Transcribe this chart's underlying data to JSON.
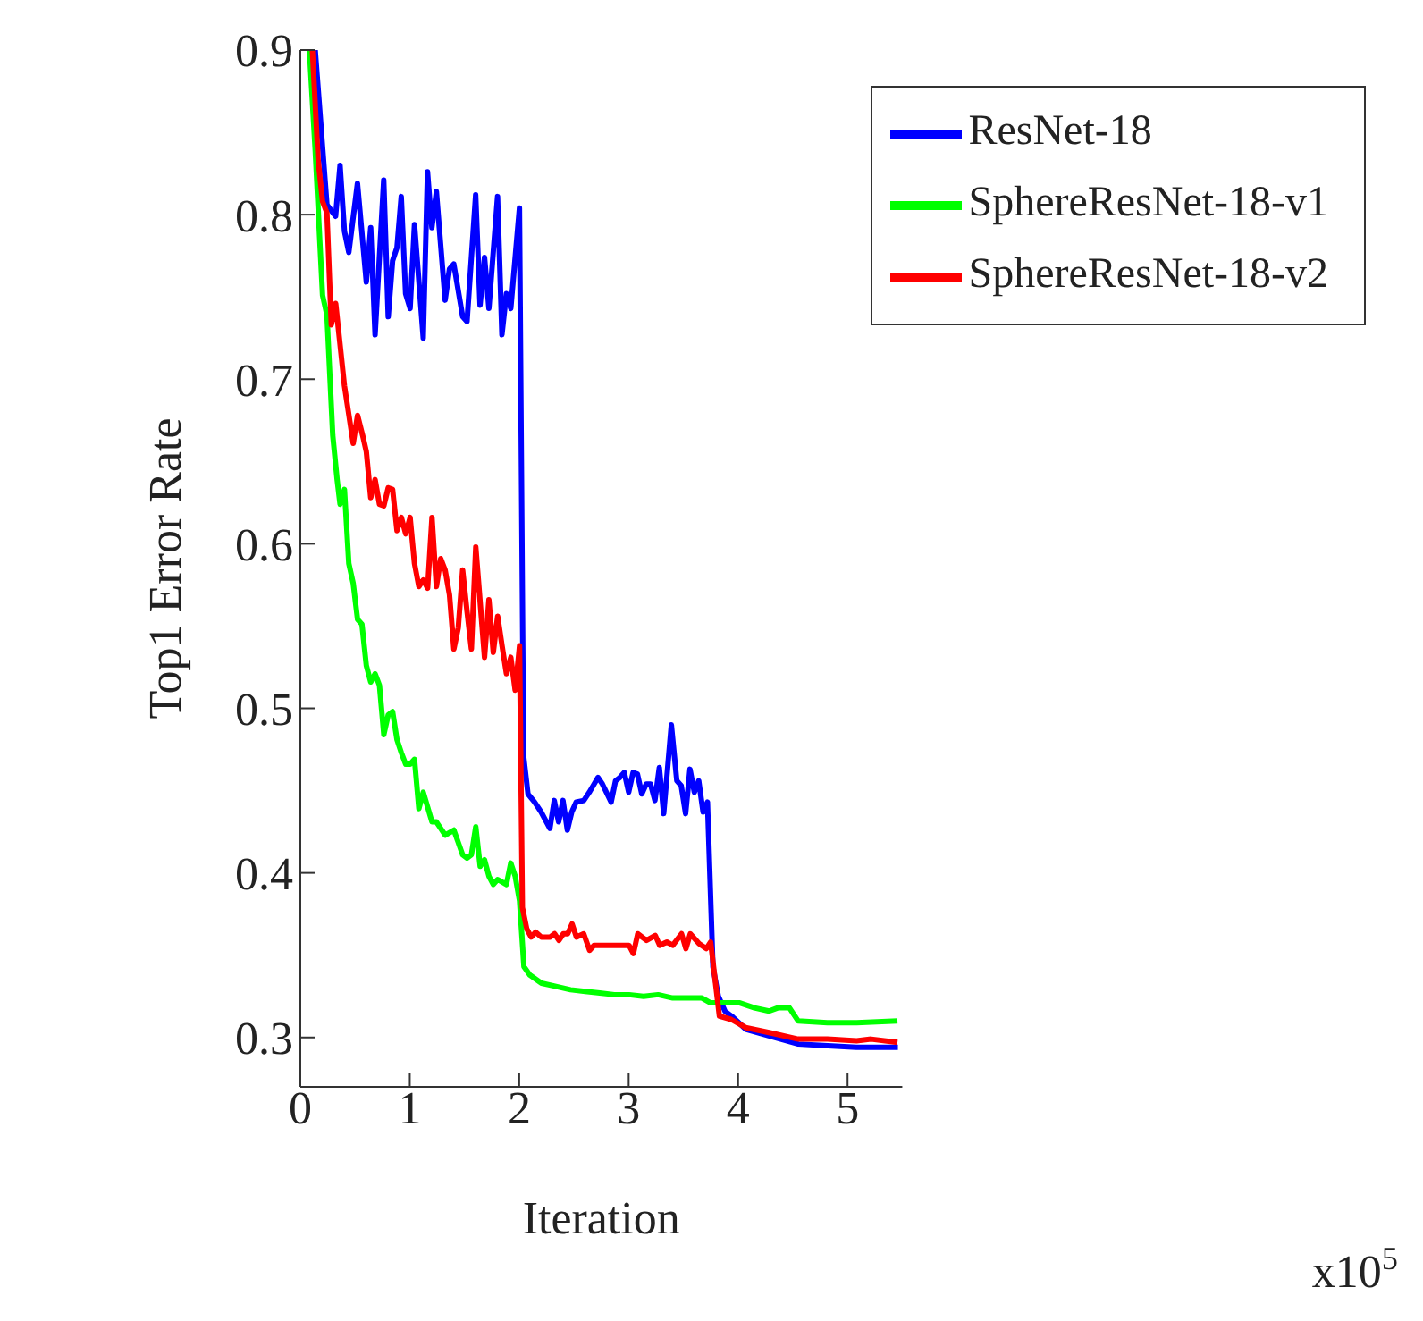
{
  "chart_data": {
    "type": "line",
    "xlabel": "Iteration",
    "ylabel": "Top1 Error Rate",
    "annotations": [
      "x10$^{5}$"
    ],
    "xlim": [
      0,
      5.5
    ],
    "xticks": [
      0,
      1,
      2,
      3,
      4,
      5
    ],
    "ylim": [
      0.27,
      0.9
    ],
    "yticks": [
      0.3,
      0.4,
      0.5,
      0.6,
      0.7,
      0.8,
      0.9
    ],
    "grid": false,
    "legend": "top right",
    "marker": "none",
    "line_style": "solid",
    "series": [
      {
        "name": "ResNet-18",
        "color": "#0000ff",
        "x": [
          0.136,
          0.243,
          0.322,
          0.363,
          0.403,
          0.443,
          0.522,
          0.603,
          0.643,
          0.683,
          0.762,
          0.803,
          0.843,
          0.883,
          0.922,
          0.962,
          1.003,
          1.043,
          1.123,
          1.162,
          1.202,
          1.243,
          1.323,
          1.363,
          1.402,
          1.483,
          1.523,
          1.602,
          1.642,
          1.683,
          1.723,
          1.802,
          1.842,
          1.883,
          1.923,
          2.002,
          2.04,
          2.08,
          2.14,
          2.2,
          2.28,
          2.32,
          2.36,
          2.4,
          2.44,
          2.48,
          2.52,
          2.59,
          2.64,
          2.72,
          2.76,
          2.84,
          2.88,
          2.92,
          2.96,
          3.0,
          3.04,
          3.08,
          3.12,
          3.16,
          3.2,
          3.24,
          3.28,
          3.32,
          3.39,
          3.44,
          3.48,
          3.52,
          3.56,
          3.6,
          3.64,
          3.68,
          3.72,
          3.77,
          3.82,
          3.88,
          3.94,
          4.07,
          4.28,
          4.55,
          4.82,
          5.08,
          5.46
        ],
        "values": [
          0.9,
          0.806,
          0.799,
          0.83,
          0.79,
          0.777,
          0.819,
          0.759,
          0.792,
          0.727,
          0.821,
          0.738,
          0.772,
          0.78,
          0.811,
          0.752,
          0.743,
          0.794,
          0.725,
          0.826,
          0.792,
          0.814,
          0.748,
          0.767,
          0.77,
          0.738,
          0.735,
          0.812,
          0.745,
          0.774,
          0.743,
          0.811,
          0.727,
          0.752,
          0.743,
          0.804,
          0.471,
          0.448,
          0.443,
          0.437,
          0.427,
          0.444,
          0.431,
          0.444,
          0.426,
          0.437,
          0.443,
          0.444,
          0.449,
          0.458,
          0.454,
          0.443,
          0.456,
          0.458,
          0.461,
          0.449,
          0.461,
          0.46,
          0.448,
          0.454,
          0.454,
          0.444,
          0.464,
          0.436,
          0.49,
          0.456,
          0.453,
          0.436,
          0.463,
          0.449,
          0.456,
          0.437,
          0.443,
          0.343,
          0.325,
          0.316,
          0.313,
          0.305,
          0.301,
          0.296,
          0.295,
          0.294,
          0.294
        ]
      },
      {
        "name": "SphereResNet-18-v1",
        "color": "#00ff00",
        "x": [
          0.083,
          0.136,
          0.203,
          0.243,
          0.296,
          0.336,
          0.363,
          0.403,
          0.443,
          0.483,
          0.523,
          0.563,
          0.603,
          0.643,
          0.683,
          0.723,
          0.763,
          0.803,
          0.843,
          0.883,
          0.923,
          0.963,
          1.003,
          1.043,
          1.083,
          1.123,
          1.203,
          1.243,
          1.323,
          1.403,
          1.483,
          1.523,
          1.563,
          1.603,
          1.643,
          1.683,
          1.723,
          1.763,
          1.803,
          1.883,
          1.923,
          1.963,
          2.003,
          2.043,
          2.096,
          2.203,
          2.336,
          2.469,
          2.603,
          2.736,
          2.869,
          3.003,
          3.136,
          3.269,
          3.403,
          3.536,
          3.669,
          3.749,
          4.016,
          4.149,
          4.283,
          4.363,
          4.469,
          4.549,
          4.816,
          5.083,
          5.456
        ],
        "values": [
          0.9,
          0.839,
          0.751,
          0.739,
          0.666,
          0.639,
          0.624,
          0.633,
          0.588,
          0.576,
          0.554,
          0.551,
          0.526,
          0.516,
          0.521,
          0.514,
          0.484,
          0.496,
          0.498,
          0.481,
          0.473,
          0.466,
          0.466,
          0.469,
          0.439,
          0.449,
          0.431,
          0.431,
          0.423,
          0.426,
          0.411,
          0.409,
          0.411,
          0.428,
          0.404,
          0.408,
          0.398,
          0.393,
          0.396,
          0.393,
          0.406,
          0.398,
          0.383,
          0.343,
          0.338,
          0.333,
          0.331,
          0.329,
          0.328,
          0.327,
          0.326,
          0.326,
          0.325,
          0.326,
          0.324,
          0.324,
          0.324,
          0.321,
          0.321,
          0.318,
          0.316,
          0.318,
          0.318,
          0.31,
          0.309,
          0.309,
          0.31
        ]
      },
      {
        "name": "SphereResNet-18-v2",
        "color": "#ff0000",
        "x": [
          0.11,
          0.163,
          0.203,
          0.243,
          0.283,
          0.323,
          0.403,
          0.483,
          0.523,
          0.576,
          0.603,
          0.643,
          0.683,
          0.723,
          0.763,
          0.803,
          0.843,
          0.883,
          0.923,
          0.963,
          1.003,
          1.043,
          1.083,
          1.123,
          1.163,
          1.203,
          1.243,
          1.283,
          1.323,
          1.363,
          1.403,
          1.443,
          1.483,
          1.523,
          1.563,
          1.603,
          1.683,
          1.723,
          1.763,
          1.803,
          1.843,
          1.883,
          1.923,
          1.963,
          2.003,
          2.029,
          2.069,
          2.109,
          2.149,
          2.203,
          2.283,
          2.323,
          2.363,
          2.403,
          2.443,
          2.483,
          2.523,
          2.589,
          2.643,
          2.683,
          3.003,
          3.043,
          3.083,
          3.163,
          3.243,
          3.283,
          3.349,
          3.403,
          3.483,
          3.523,
          3.563,
          3.643,
          3.709,
          3.749,
          3.829,
          3.936,
          4.069,
          4.283,
          4.549,
          4.816,
          5.083,
          5.216,
          5.456
        ],
        "values": [
          0.9,
          0.833,
          0.808,
          0.801,
          0.733,
          0.746,
          0.696,
          0.661,
          0.678,
          0.664,
          0.656,
          0.628,
          0.639,
          0.624,
          0.623,
          0.634,
          0.633,
          0.608,
          0.616,
          0.606,
          0.616,
          0.588,
          0.574,
          0.578,
          0.573,
          0.616,
          0.574,
          0.591,
          0.584,
          0.569,
          0.536,
          0.549,
          0.584,
          0.559,
          0.536,
          0.598,
          0.531,
          0.566,
          0.534,
          0.556,
          0.538,
          0.521,
          0.531,
          0.511,
          0.538,
          0.379,
          0.366,
          0.361,
          0.364,
          0.361,
          0.361,
          0.363,
          0.359,
          0.363,
          0.363,
          0.369,
          0.361,
          0.363,
          0.353,
          0.356,
          0.356,
          0.351,
          0.363,
          0.359,
          0.362,
          0.356,
          0.358,
          0.356,
          0.363,
          0.354,
          0.363,
          0.357,
          0.354,
          0.358,
          0.313,
          0.311,
          0.306,
          0.303,
          0.299,
          0.299,
          0.298,
          0.299,
          0.297
        ]
      }
    ]
  }
}
